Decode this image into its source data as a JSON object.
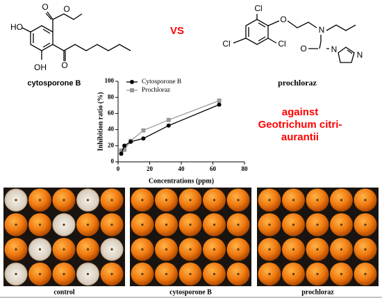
{
  "compare_label": "VS",
  "molecules": [
    {
      "name": "cytosporone B",
      "atoms": [
        "HO",
        "OH",
        "O",
        "O",
        "O"
      ]
    },
    {
      "name": "prochloraz",
      "atoms": [
        "Cl",
        "Cl",
        "Cl",
        "O",
        "N",
        "O",
        "N",
        "N"
      ]
    }
  ],
  "chart_data": {
    "type": "line",
    "x_label": "Concentrations (ppm)",
    "y_label": "Inhibition ratio (%)",
    "annotation": [
      "against",
      "Geotrichum citri-",
      "aurantii"
    ],
    "annotation_color": "#ff0000",
    "x": [
      2,
      4,
      8,
      16,
      32,
      64
    ],
    "series": [
      {
        "name": "Cytosporone B",
        "color": "#000000",
        "marker": "circle",
        "values": [
          10,
          20,
          25,
          29,
          45,
          71
        ]
      },
      {
        "name": "Prochloraz",
        "color": "#999999",
        "marker": "square",
        "values": [
          14,
          15,
          26,
          39,
          52,
          76
        ]
      }
    ],
    "xlim": [
      0,
      80
    ],
    "xticks": [
      0,
      20,
      40,
      60,
      80
    ],
    "ylim": [
      0,
      100
    ],
    "yticks": [
      0,
      20,
      40,
      60,
      80,
      100
    ],
    "legend": "upper left"
  },
  "panels": [
    "control",
    "cytosporone B",
    "prochloraz"
  ]
}
